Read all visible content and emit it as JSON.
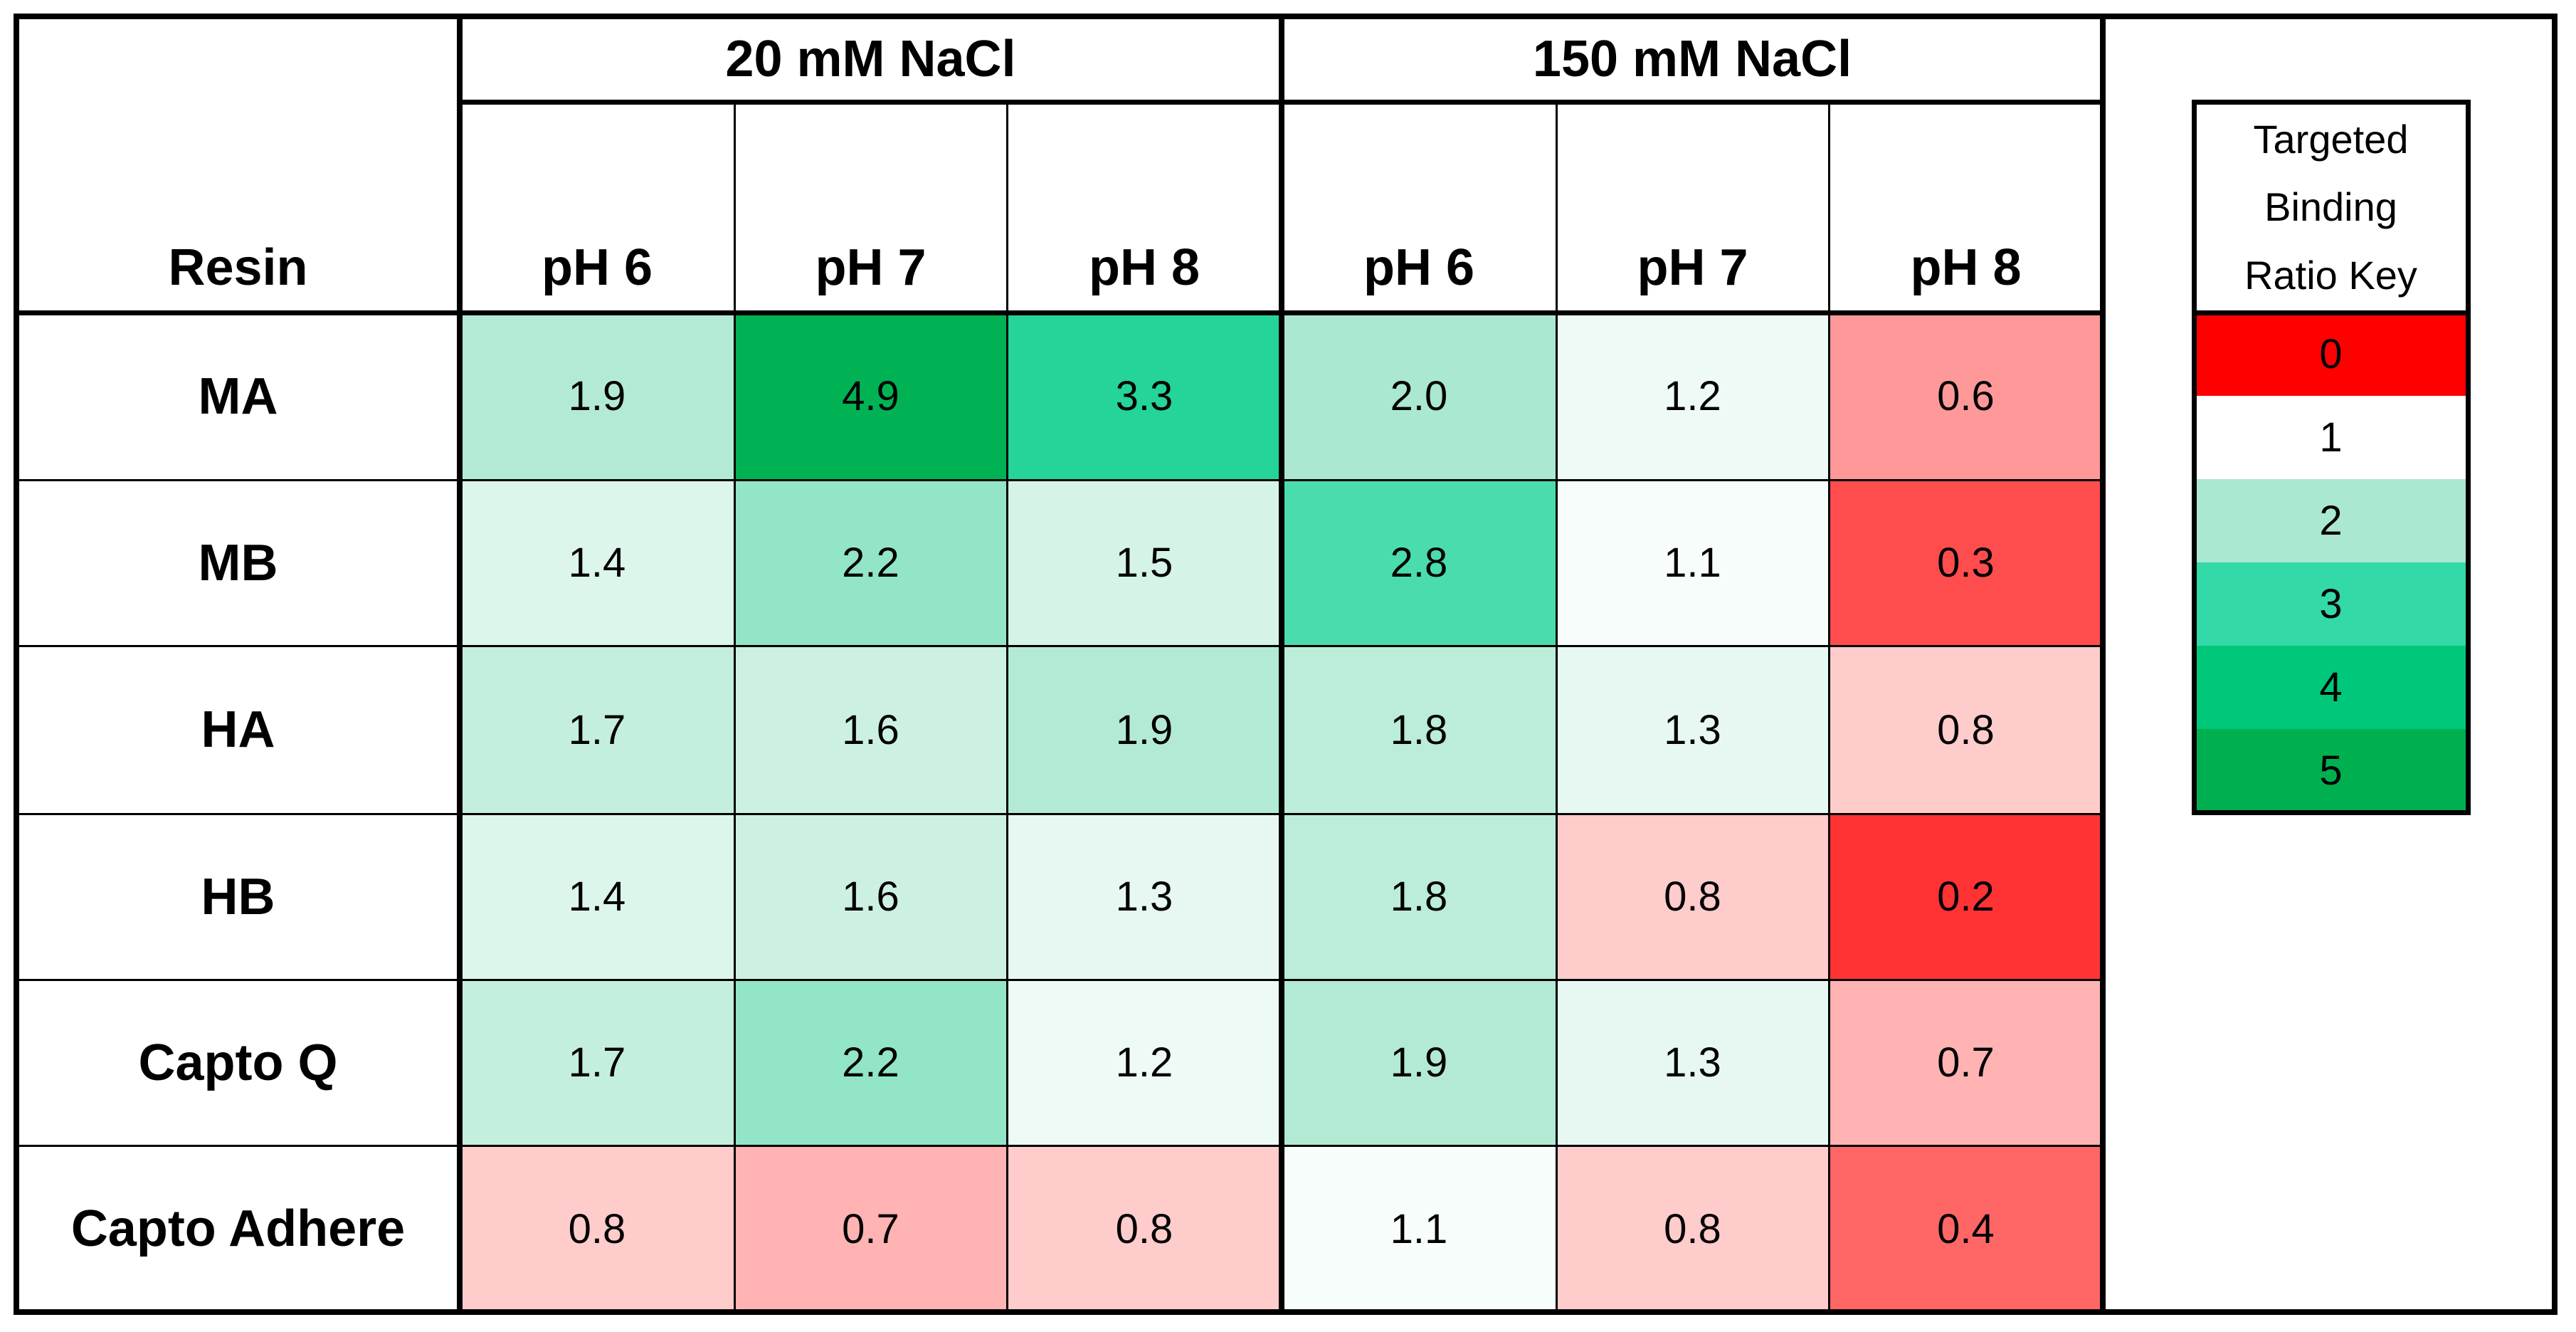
{
  "chart_data": {
    "type": "heatmap",
    "row_header": "Resin",
    "groups": [
      {
        "name": "20 mM NaCl",
        "columns": [
          "pH 6",
          "pH 7",
          "pH 8"
        ]
      },
      {
        "name": "150 mM NaCl",
        "columns": [
          "pH 6",
          "pH 7",
          "pH 8"
        ]
      }
    ],
    "rows": [
      "MA",
      "MB",
      "HA",
      "HB",
      "Capto Q",
      "Capto Adhere"
    ],
    "values": [
      [
        1.9,
        4.9,
        3.3,
        2.0,
        1.2,
        0.6
      ],
      [
        1.4,
        2.2,
        1.5,
        2.8,
        1.1,
        0.3
      ],
      [
        1.7,
        1.6,
        1.9,
        1.8,
        1.3,
        0.8
      ],
      [
        1.4,
        1.6,
        1.3,
        1.8,
        0.8,
        0.2
      ],
      [
        1.7,
        2.2,
        1.2,
        1.9,
        1.3,
        0.7
      ],
      [
        0.8,
        0.7,
        0.8,
        1.1,
        0.8,
        0.4
      ]
    ],
    "value_labels": [
      [
        "1.9",
        "4.9",
        "3.3",
        "2.0",
        "1.2",
        "0.6"
      ],
      [
        "1.4",
        "2.2",
        "1.5",
        "2.8",
        "1.1",
        "0.3"
      ],
      [
        "1.7",
        "1.6",
        "1.9",
        "1.8",
        "1.3",
        "0.8"
      ],
      [
        "1.4",
        "1.6",
        "1.3",
        "1.8",
        "0.8",
        "0.2"
      ],
      [
        "1.7",
        "2.2",
        "1.2",
        "1.9",
        "1.3",
        "0.7"
      ],
      [
        "0.8",
        "0.7",
        "0.8",
        "1.1",
        "0.8",
        "0.4"
      ]
    ],
    "legend": {
      "title": "Targeted Binding Ratio Key",
      "values": [
        0,
        1,
        2,
        3,
        4,
        5
      ],
      "colors": [
        "#ff0000",
        "#ffffff",
        "#aae8cf",
        "#33d9a6",
        "#00c87a",
        "#00b050"
      ]
    }
  }
}
